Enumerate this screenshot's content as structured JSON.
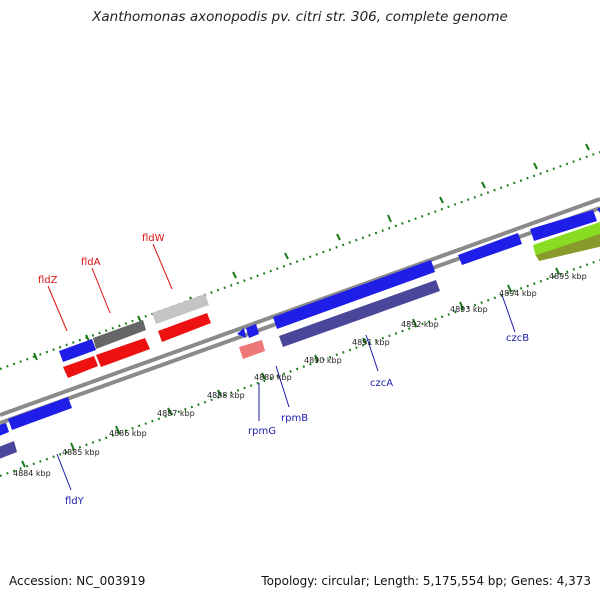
{
  "title": "Xanthomonas axonopodis pv. citri str. 306, complete genome",
  "footer": {
    "accession": "Accession: NC_003919",
    "summary": "Topology: circular; Length: 5,175,554 bp; Genes: 4,373"
  },
  "colors": {
    "forward_gene": "#1e1ee8",
    "reverse_gene": "#ee1111",
    "grey_gene": "#777777",
    "light_grey_gene": "#c4c4c4",
    "pink_gene": "#ee7777",
    "dark_purple_gene": "#4a4699",
    "green_gene": "#88dd22",
    "olive_gene": "#8a9a2a",
    "tick": "#1a7a1a",
    "backbone": "#8a8a8a",
    "label_red": "#dd1111",
    "label_blue": "#1a1aaa"
  },
  "kbp_labels": [
    "4884 kbp",
    "4885 kbp",
    "4886 kbp",
    "4887 kbp",
    "4888 kbp",
    "4889 kbp",
    "4890 kbp",
    "4891 kbp",
    "4892 kbp",
    "4893 kbp",
    "4894 kbp",
    "4895 kbp"
  ],
  "gene_labels": {
    "fldW": "fldW",
    "fldA": "fldA",
    "fldZ": "fldZ",
    "czcB": "czcB",
    "czcA": "czcA",
    "rpmB": "rpmB",
    "rpmG": "rpmG",
    "fldY": "fldY"
  }
}
